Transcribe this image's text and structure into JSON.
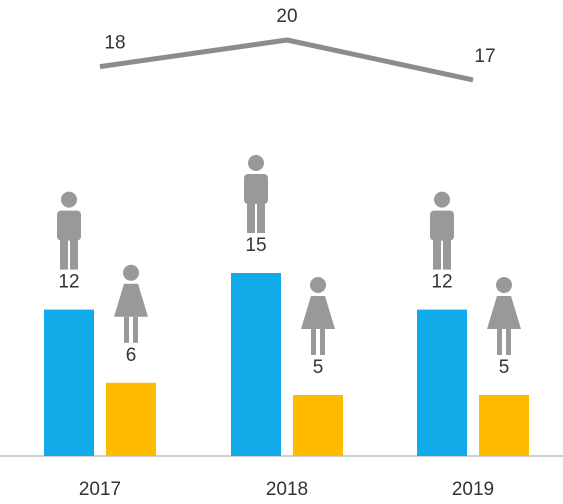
{
  "chart_data": {
    "type": "bar",
    "categories": [
      "2017",
      "2018",
      "2019"
    ],
    "series": [
      {
        "color": "#12aae8",
        "values": [
          12,
          15,
          12
        ]
      },
      {
        "color": "#ffbb00",
        "values": [
          6,
          5,
          5
        ]
      },
      {
        "type": "line",
        "color": "#8c8c8c",
        "values": [
          18,
          20,
          17
        ]
      }
    ]
  }
}
